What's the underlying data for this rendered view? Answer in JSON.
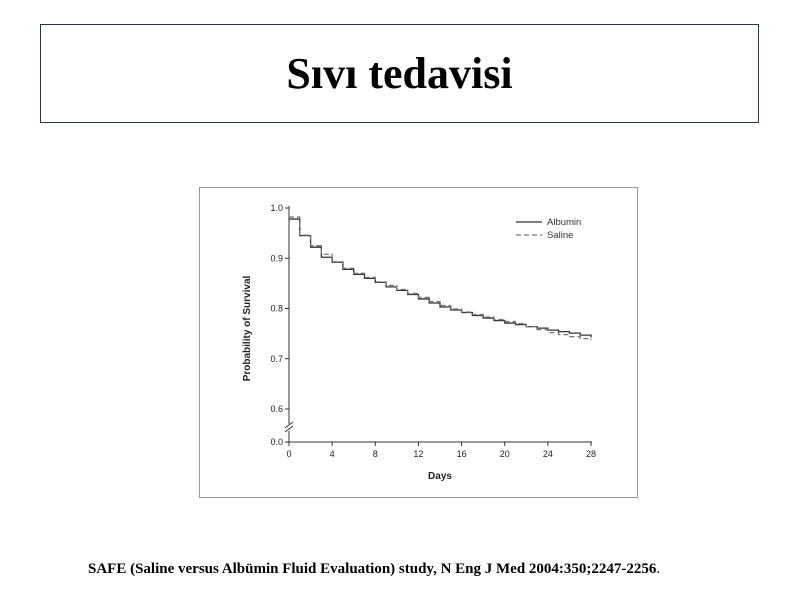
{
  "slide": {
    "title": "Sıvı tedavisi",
    "citation": "SAFE (Saline versus Albümin Fluid Evaluation) study, N Eng J Med 2004:350;2247-2256",
    "citation_end": "."
  },
  "chart_data": {
    "type": "line",
    "subtype": "kaplan-meier-step",
    "title": "",
    "xlabel": "Days",
    "ylabel": "Probability of Survival",
    "xlim": [
      0,
      28
    ],
    "ylim": [
      0.6,
      1.0
    ],
    "y_axis_break": true,
    "y_break_bottom_label": "0.0",
    "xticks": [
      "0",
      "4",
      "8",
      "12",
      "16",
      "20",
      "24",
      "28"
    ],
    "yticks": [
      "0.6",
      "0.7",
      "0.8",
      "0.9",
      "1.0"
    ],
    "grid": false,
    "legend_position": "top-right",
    "series": [
      {
        "name": "Albumin",
        "style": "solid",
        "color": "#333333",
        "x": [
          0,
          1,
          2,
          3,
          4,
          5,
          6,
          7,
          8,
          9,
          10,
          11,
          12,
          13,
          14,
          15,
          16,
          17,
          18,
          19,
          20,
          21,
          22,
          23,
          24,
          25,
          26,
          27,
          28
        ],
        "y": [
          0.978,
          0.945,
          0.922,
          0.902,
          0.892,
          0.878,
          0.868,
          0.86,
          0.852,
          0.843,
          0.836,
          0.828,
          0.819,
          0.811,
          0.803,
          0.797,
          0.792,
          0.786,
          0.781,
          0.776,
          0.771,
          0.768,
          0.764,
          0.761,
          0.757,
          0.754,
          0.751,
          0.747,
          0.742
        ]
      },
      {
        "name": "Saline",
        "style": "dashed",
        "color": "#777777",
        "x": [
          0,
          1,
          2,
          3,
          4,
          5,
          6,
          7,
          8,
          9,
          10,
          11,
          12,
          13,
          14,
          15,
          16,
          17,
          18,
          19,
          20,
          21,
          22,
          23,
          24,
          25,
          26,
          27,
          28
        ],
        "y": [
          0.982,
          0.946,
          0.925,
          0.908,
          0.893,
          0.88,
          0.87,
          0.862,
          0.853,
          0.846,
          0.838,
          0.83,
          0.822,
          0.814,
          0.806,
          0.799,
          0.793,
          0.788,
          0.783,
          0.778,
          0.774,
          0.77,
          0.764,
          0.758,
          0.752,
          0.748,
          0.744,
          0.74,
          0.737
        ]
      }
    ]
  }
}
